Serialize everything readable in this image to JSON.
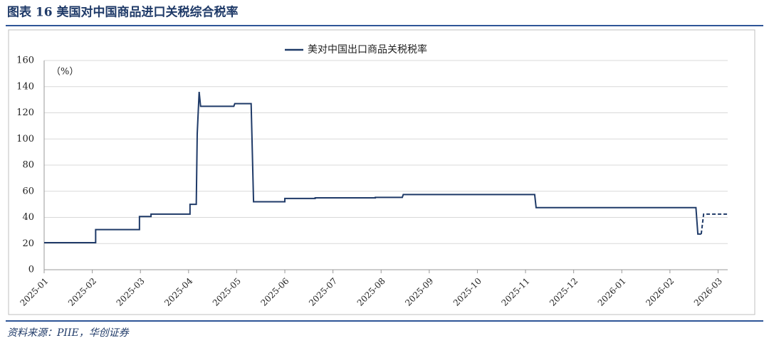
{
  "title": "图表 16 美国对中国商品进口关税综合税率",
  "source": "资料来源：PIIE，华创证券",
  "chart_data": {
    "type": "line",
    "legend_title": "美对中国出口商品关税税率",
    "y_unit_label": "（%）",
    "ylim": [
      0,
      160
    ],
    "yticks": [
      0,
      20,
      40,
      60,
      80,
      100,
      120,
      140,
      160
    ],
    "xlim": [
      0,
      14.2
    ],
    "xticks": [
      {
        "value": 0,
        "label": "2025-01"
      },
      {
        "value": 1,
        "label": "2025-02"
      },
      {
        "value": 2,
        "label": "2025-03"
      },
      {
        "value": 3,
        "label": "2025-04"
      },
      {
        "value": 4,
        "label": "2025-05"
      },
      {
        "value": 5,
        "label": "2025-06"
      },
      {
        "value": 6,
        "label": "2025-07"
      },
      {
        "value": 7,
        "label": "2025-08"
      },
      {
        "value": 8,
        "label": "2025-09"
      },
      {
        "value": 9,
        "label": "2025-10"
      },
      {
        "value": 10,
        "label": "2025-11"
      },
      {
        "value": 11,
        "label": "2025-12"
      },
      {
        "value": 12,
        "label": "2026-01"
      },
      {
        "value": 13,
        "label": "2026-02"
      },
      {
        "value": 14,
        "label": "2026-03"
      }
    ],
    "grid": true,
    "series": [
      {
        "name": "美对中国出口商品关税税率",
        "color": "#1f3a68",
        "dashed": false,
        "x": [
          0,
          1.07,
          1.07,
          1.98,
          1.98,
          2.22,
          2.22,
          3.03,
          3.03,
          3.16,
          3.18,
          3.22,
          3.25,
          3.94,
          3.96,
          4.3,
          4.35,
          5.0,
          5.0,
          5.63,
          5.63,
          6.88,
          6.88,
          7.44,
          7.46,
          10.19,
          10.22,
          13.54,
          13.58,
          13.65
        ],
        "values": [
          20.7,
          20.7,
          30.7,
          30.7,
          40.7,
          40.7,
          42.5,
          42.5,
          50,
          50,
          104,
          136,
          125,
          125,
          127,
          127,
          52,
          52,
          54.5,
          54.5,
          55,
          55,
          55.3,
          55.3,
          57.5,
          57.5,
          47.5,
          47.5,
          27.3,
          27.3
        ]
      },
      {
        "color": "#1f3a68",
        "dashed": true,
        "x": [
          13.65,
          13.7,
          14.2
        ],
        "values": [
          27.3,
          42.5,
          42.5
        ]
      }
    ]
  }
}
